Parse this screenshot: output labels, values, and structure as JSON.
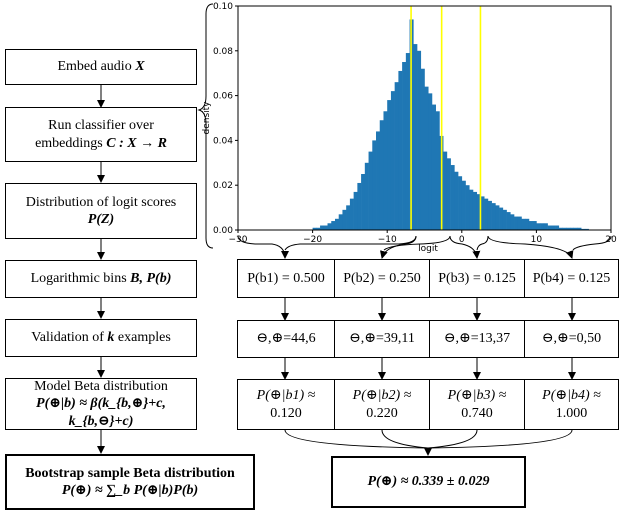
{
  "steps": {
    "embed_prefix": "Embed audio ",
    "embed_var": "X",
    "classifier_line1": "Run classifier over",
    "classifier_line2": "embeddings ",
    "classifier_map": "C : X → R",
    "distribution_line1": "Distribution of logit scores",
    "distribution_var": "P(Z)",
    "bins_prefix": "Logarithmic bins ",
    "bins_var": "B, P(b)",
    "validation_prefix": "Validation of ",
    "validation_var": "k",
    "validation_suffix": " examples",
    "beta_line1": "Model Beta distribution",
    "beta_formula": "P(⊕|b) ≈ β(k_{b,⊕}+c, k_{b,⊖}+c)",
    "bootstrap_line1": "Bootstrap sample Beta distribution",
    "bootstrap_formula": "P(⊕) ≈ ∑_b P(⊕|b)P(b)"
  },
  "bins": [
    {
      "label": "P(b1) = 0.500",
      "counts": "⊖,⊕=44,6",
      "beta_line1": "P(⊕|b1) ≈",
      "beta_value": "0.120"
    },
    {
      "label": "P(b2) = 0.250",
      "counts": "⊖,⊕=39,11",
      "beta_line1": "P(⊕|b2) ≈",
      "beta_value": "0.220"
    },
    {
      "label": "P(b3) = 0.125",
      "counts": "⊖,⊕=13,37",
      "beta_line1": "P(⊕|b3) ≈",
      "beta_value": "0.740"
    },
    {
      "label": "P(b4) = 0.125",
      "counts": "⊖,⊕=0,50",
      "beta_line1": "P(⊕|b4) ≈",
      "beta_value": "1.000"
    }
  ],
  "result": "P(⊕) ≈ 0.339 ± 0.029",
  "chart_data": {
    "type": "bar",
    "title": "",
    "xlabel": "logit",
    "ylabel": "density",
    "xlim": [
      -30,
      20
    ],
    "ylim": [
      0,
      0.1
    ],
    "xticks": [
      -30,
      -20,
      -10,
      0,
      10,
      20
    ],
    "yticks": [
      0.0,
      0.02,
      0.04,
      0.06,
      0.08,
      0.1
    ],
    "bar_color": "#1f77b4",
    "bin_width": 0.5,
    "bin_centers": [
      -19.75,
      -19.25,
      -18.75,
      -18.25,
      -17.75,
      -17.25,
      -16.75,
      -16.25,
      -15.75,
      -15.25,
      -14.75,
      -14.25,
      -13.75,
      -13.25,
      -12.75,
      -12.25,
      -11.75,
      -11.25,
      -10.75,
      -10.25,
      -9.75,
      -9.25,
      -8.75,
      -8.25,
      -7.75,
      -7.25,
      -6.75,
      -6.25,
      -5.75,
      -5.25,
      -4.75,
      -4.25,
      -3.75,
      -3.25,
      -2.75,
      -2.25,
      -1.75,
      -1.25,
      -0.75,
      -0.25,
      0.25,
      0.75,
      1.25,
      1.75,
      2.25,
      2.75,
      3.25,
      3.75,
      4.25,
      4.75,
      5.25,
      5.75,
      6.25,
      6.75,
      7.25,
      7.75,
      8.25,
      8.75,
      9.25,
      9.75,
      10.25,
      10.75,
      11.25,
      11.75,
      12.25,
      12.75,
      13.25,
      13.75,
      14.25,
      14.75,
      15.25,
      15.75,
      16.25,
      16.75
    ],
    "densities": [
      0.001,
      0.001,
      0.002,
      0.002,
      0.003,
      0.004,
      0.005,
      0.007,
      0.009,
      0.011,
      0.014,
      0.017,
      0.021,
      0.025,
      0.03,
      0.035,
      0.04,
      0.044,
      0.049,
      0.053,
      0.058,
      0.062,
      0.066,
      0.071,
      0.075,
      0.079,
      0.094,
      0.083,
      0.08,
      0.072,
      0.064,
      0.061,
      0.056,
      0.053,
      0.042,
      0.035,
      0.032,
      0.029,
      0.026,
      0.024,
      0.022,
      0.02,
      0.018,
      0.017,
      0.016,
      0.015,
      0.014,
      0.013,
      0.012,
      0.011,
      0.01,
      0.009,
      0.008,
      0.007,
      0.006,
      0.006,
      0.005,
      0.005,
      0.004,
      0.004,
      0.003,
      0.003,
      0.003,
      0.002,
      0.002,
      0.002,
      0.001,
      0.001,
      0.001,
      0.001,
      0.001,
      0.001,
      0.0005,
      0.0005
    ],
    "bin_edges": [
      -6.8,
      -2.7,
      2.5
    ],
    "bin_edge_color": "#ffff00"
  }
}
